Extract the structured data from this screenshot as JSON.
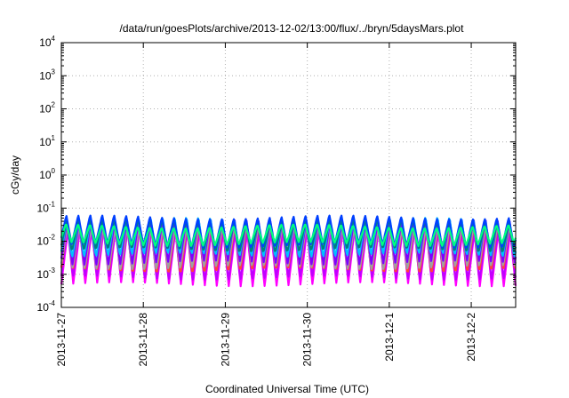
{
  "chart_data": {
    "type": "line",
    "title": "/data/run/goesPlots/archive/2013-12-02/13:00/flux/../bryn/5daysMars.plot",
    "xlabel": "Coordinated Universal Time (UTC)",
    "ylabel": "cGy/day",
    "yscale": "log",
    "ylim": [
      0.0001,
      10000
    ],
    "xlim": [
      "2013-11-27T00:00",
      "2013-12-02T13:00"
    ],
    "grid": true,
    "legend": "none",
    "y_ticks": [
      {
        "base": "10",
        "exp": "-4"
      },
      {
        "base": "10",
        "exp": "-3"
      },
      {
        "base": "10",
        "exp": "-2"
      },
      {
        "base": "10",
        "exp": "-1"
      },
      {
        "base": "10",
        "exp": "0"
      },
      {
        "base": "10",
        "exp": "1"
      },
      {
        "base": "10",
        "exp": "2"
      },
      {
        "base": "10",
        "exp": "3"
      },
      {
        "base": "10",
        "exp": "4"
      }
    ],
    "x_ticks": [
      "2013-11-27",
      "2013-11-28",
      "2013-11-29",
      "2013-11-30",
      "2013-12-1",
      "2013-12-2"
    ],
    "x_tick_dates": [
      "2013-11-27",
      "2013-11-28",
      "2013-11-29",
      "2013-11-30",
      "2013-12-01",
      "2013-12-02"
    ],
    "sawtooth_period_hours": 3.5,
    "series": [
      {
        "color": "#ff00ff",
        "peak": 0.022,
        "trough": 0.0005
      },
      {
        "color": "#c000ff",
        "peak": 0.026,
        "trough": 0.0007
      },
      {
        "color": "#ff4040",
        "peak": 0.035,
        "trough": 0.0011
      },
      {
        "color": "#a0a0a0",
        "peak": 0.03,
        "trough": 0.0015
      },
      {
        "color": "#8000ff",
        "peak": 0.045,
        "trough": 0.0022
      },
      {
        "color": "#00c0ff",
        "peak": 0.05,
        "trough": 0.0035
      },
      {
        "color": "#008080",
        "peak": 0.042,
        "trough": 0.005
      },
      {
        "color": "#0040ff",
        "peak": 0.055,
        "trough": 0.007
      },
      {
        "color": "#00ff80",
        "peak": 0.03,
        "trough": 0.008
      }
    ]
  }
}
